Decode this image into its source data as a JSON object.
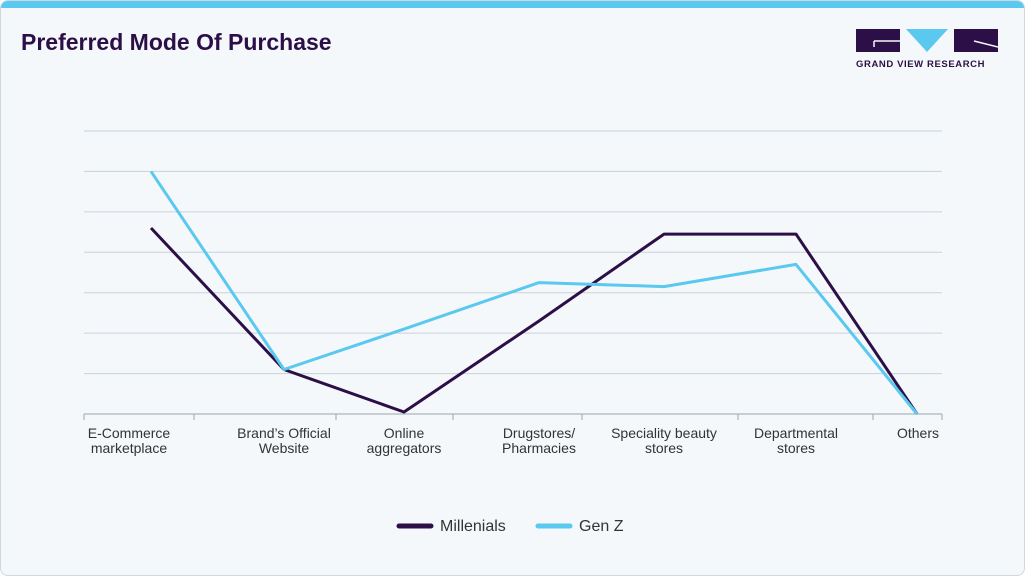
{
  "title": "Preferred Mode Of Purchase",
  "logo": {
    "text": "GRAND VIEW RESEARCH"
  },
  "colors": {
    "millenials": "#2d0f47",
    "genz": "#5bc8f0",
    "title": "#2d0f47"
  },
  "chart_data": {
    "type": "line",
    "title": "Preferred Mode Of Purchase",
    "categories": [
      [
        "E-Commerce",
        "marketplace"
      ],
      [
        "Brand’s Official",
        "Website"
      ],
      [
        "Online",
        "aggregators"
      ],
      [
        "Drugstores/",
        "Pharmacies"
      ],
      [
        "Speciality beauty",
        "stores"
      ],
      [
        "Departmental",
        "stores"
      ],
      [
        "Others"
      ]
    ],
    "series": [
      {
        "name": "Millenials",
        "color": "#2d0f47",
        "values": [
          4.6,
          1.1,
          0.05,
          2.3,
          4.45,
          4.45,
          0
        ]
      },
      {
        "name": "Gen Z",
        "color": "#5bc8f0",
        "values": [
          6.0,
          1.1,
          2.1,
          3.25,
          3.15,
          3.7,
          0
        ]
      }
    ],
    "ylim": [
      0,
      7
    ],
    "grid": true,
    "yticks_shown": false,
    "legend_position": "bottom-center",
    "xlabel": "",
    "ylabel": ""
  }
}
